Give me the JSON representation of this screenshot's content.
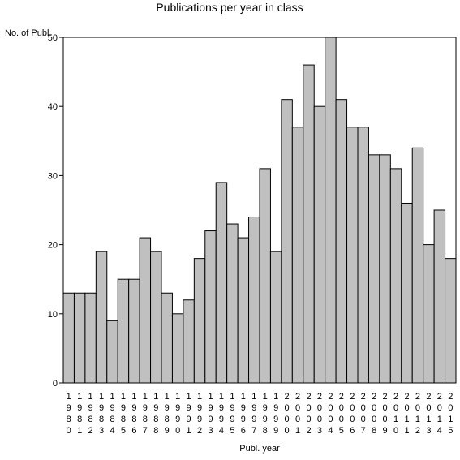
{
  "chart_data": {
    "type": "bar",
    "title": "Publications per year in class",
    "ylabel": "No. of Publ.",
    "xlabel": "Publ. year",
    "ylim": [
      0,
      50
    ],
    "yticks": [
      0,
      10,
      20,
      30,
      40,
      50
    ],
    "categories": [
      "1980",
      "1981",
      "1982",
      "1983",
      "1984",
      "1985",
      "1986",
      "1987",
      "1988",
      "1989",
      "1990",
      "1991",
      "1992",
      "1993",
      "1994",
      "1995",
      "1996",
      "1997",
      "1998",
      "1999",
      "2000",
      "2001",
      "2002",
      "2003",
      "2004",
      "2005",
      "2006",
      "2007",
      "2008",
      "2009",
      "2010",
      "2011",
      "2012",
      "2013",
      "2014",
      "2015"
    ],
    "values": [
      13,
      13,
      13,
      19,
      9,
      15,
      15,
      21,
      19,
      13,
      10,
      12,
      18,
      22,
      29,
      23,
      21,
      24,
      31,
      19,
      41,
      37,
      46,
      40,
      50,
      41,
      37,
      37,
      33,
      33,
      31,
      26,
      34,
      20,
      25,
      18
    ],
    "bar_color": "#c0c0c0",
    "grid": false,
    "tick_labels_vertical_digits": true
  }
}
